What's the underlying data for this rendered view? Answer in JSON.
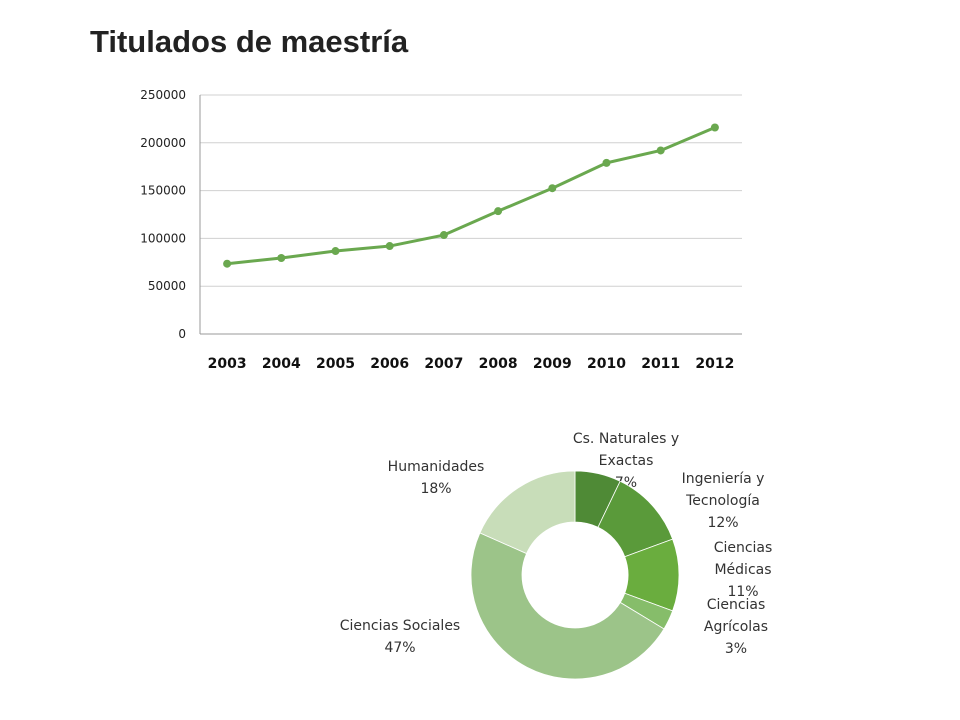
{
  "slide": {
    "title": "Titulados de maestría"
  },
  "colors": {
    "line": "#6aa84f",
    "grid": "#d0d0d0",
    "axis": "#999999"
  },
  "chart_data": [
    {
      "type": "line",
      "title": "",
      "xlabel": "",
      "ylabel": "",
      "categories": [
        "2003",
        "2004",
        "2005",
        "2006",
        "2007",
        "2008",
        "2009",
        "2010",
        "2011",
        "2012"
      ],
      "series": [
        {
          "values": [
            73500,
            79500,
            86800,
            92000,
            103500,
            128500,
            152500,
            179000,
            192000,
            216000
          ]
        }
      ],
      "ylim": [
        0,
        250000
      ],
      "yticks": [
        "0",
        "50000",
        "100000",
        "150000",
        "200000",
        "250000"
      ],
      "grid": true,
      "legend": "none"
    },
    {
      "type": "pie",
      "donut": true,
      "slices": [
        {
          "label": "Cs. Naturales y Exactas",
          "label_lines": [
            "Cs. Naturales y",
            "Exactas"
          ],
          "pct_label": "7%",
          "value": 7,
          "color": "#4f8a36"
        },
        {
          "label": "Ingeniería y Tecnología",
          "label_lines": [
            "Ingeniería y",
            "Tecnología"
          ],
          "pct_label": "12%",
          "value": 12,
          "color": "#5a9a3a"
        },
        {
          "label": "Ciencias Médicas",
          "label_lines": [
            "Ciencias",
            "Médicas"
          ],
          "pct_label": "11%",
          "value": 11,
          "color": "#6aad3e"
        },
        {
          "label": "Ciencias Agrícolas",
          "label_lines": [
            "Ciencias",
            "Agrícolas"
          ],
          "pct_label": "3%",
          "value": 3,
          "color": "#86bd6a"
        },
        {
          "label": "Ciencias Sociales",
          "label_lines": [
            "Ciencias Sociales"
          ],
          "pct_label": "47%",
          "value": 47,
          "color": "#9cc489"
        },
        {
          "label": "Humanidades",
          "label_lines": [
            "Humanidades"
          ],
          "pct_label": "18%",
          "value": 18,
          "color": "#c8ddb9"
        }
      ]
    }
  ]
}
